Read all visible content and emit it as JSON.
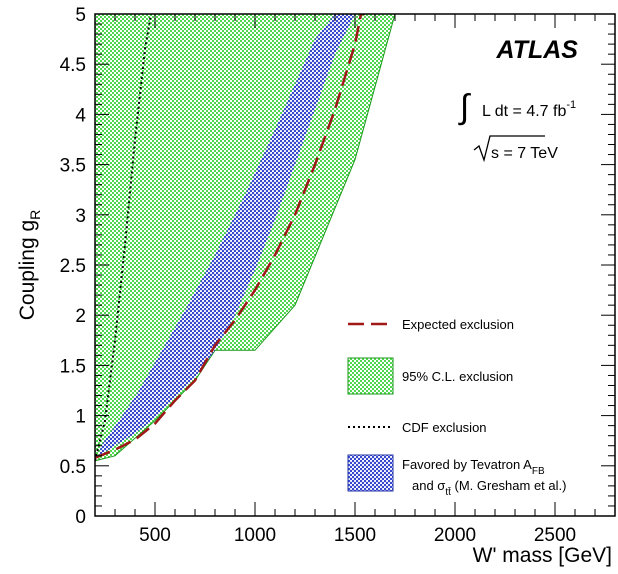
{
  "chart_data": {
    "type": "area",
    "xlabel": "W' mass [GeV]",
    "ylabel": "Coupling g",
    "ylabel_sub": "R",
    "xlim": [
      200,
      2800
    ],
    "ylim": [
      0,
      5
    ],
    "x_ticks": [
      "500",
      "1000",
      "1500",
      "2000",
      "2500"
    ],
    "y_ticks": [
      "0",
      "0.5",
      "1",
      "1.5",
      "2",
      "2.5",
      "3",
      "3.5",
      "4",
      "4.5",
      "5"
    ],
    "experiment": "ATLAS",
    "lumi_label": "L dt = 4.7 fb",
    "lumi_exp": "-1",
    "energy_label": "s = 7 TeV",
    "colors": {
      "excluded_fill": "#4fd84f",
      "favored_fill": "#3344cc",
      "expected_line": "#a01818",
      "cdf_line": "#000000"
    },
    "series": [
      {
        "name": "95% C.L. exclusion",
        "kind": "region",
        "x": [
          200,
          1700,
          1500,
          1200,
          1000,
          800,
          700,
          500,
          300,
          200
        ],
        "y": [
          5.0,
          5.0,
          3.55,
          2.1,
          1.65,
          1.65,
          1.35,
          0.95,
          0.6,
          0.55
        ]
      },
      {
        "name_main": "Favored by Tevatron A",
        "name_main_sub": "FB",
        "name_line2": "and σ",
        "name_line2_sub": "tt̄",
        "name_line2_end": " (M. Gresham et al.)",
        "kind": "band",
        "upper": {
          "x": [
            230,
            320,
            420,
            520,
            650,
            800,
            950,
            1100,
            1200,
            1300,
            1400,
            1450
          ],
          "y": [
            0.7,
            0.95,
            1.25,
            1.6,
            2.05,
            2.6,
            3.2,
            3.85,
            4.3,
            4.75,
            5.0,
            5.0
          ]
        },
        "lower": {
          "x": [
            220,
            300,
            400,
            500,
            600,
            700,
            800,
            900,
            1000,
            1100,
            1200,
            1300,
            1400,
            1500
          ],
          "y": [
            0.6,
            0.7,
            0.82,
            0.98,
            1.18,
            1.38,
            1.65,
            2.0,
            2.45,
            2.95,
            3.5,
            4.05,
            4.6,
            5.0
          ]
        }
      },
      {
        "name": "Expected exclusion",
        "kind": "line",
        "style": "dashed",
        "x": [
          200,
          300,
          400,
          500,
          600,
          700,
          800,
          900,
          1000,
          1100,
          1200,
          1300,
          1400,
          1500,
          1530,
          1550
        ],
        "y": [
          0.58,
          0.66,
          0.76,
          0.92,
          1.15,
          1.35,
          1.7,
          1.95,
          2.25,
          2.6,
          3.0,
          3.5,
          4.05,
          4.7,
          5.0,
          5.0
        ]
      },
      {
        "name": "CDF exclusion",
        "kind": "line",
        "style": "dotted",
        "x": [
          200,
          250,
          300,
          350,
          400,
          450,
          480
        ],
        "y": [
          0.55,
          0.95,
          1.75,
          2.7,
          3.75,
          4.65,
          5.0
        ]
      }
    ]
  }
}
